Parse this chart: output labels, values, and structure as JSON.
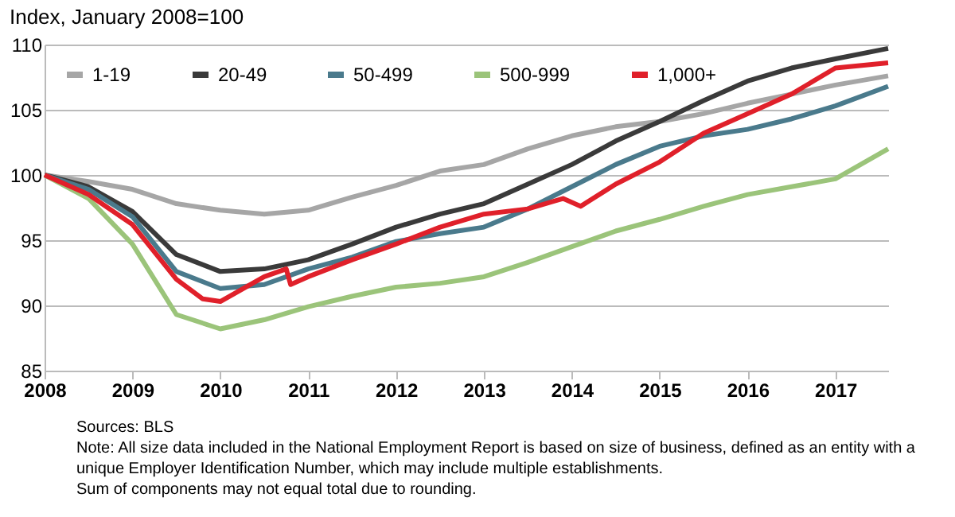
{
  "chart_data": {
    "type": "line",
    "title": "Index, January 2008=100",
    "xlim": [
      2008,
      2017.6
    ],
    "xticks": [
      2008,
      2009,
      2010,
      2011,
      2012,
      2013,
      2014,
      2015,
      2016,
      2017
    ],
    "ylim": [
      85,
      110
    ],
    "yticks": [
      85,
      90,
      95,
      100,
      105,
      110
    ],
    "grid": "y",
    "legend": "top",
    "marker": "none",
    "line_style": "solid",
    "series": [
      {
        "name": "1-19",
        "color": "#a6a6a6",
        "x": [
          2008,
          2008.5,
          2009,
          2009.5,
          2010,
          2010.5,
          2011,
          2011.5,
          2012,
          2012.5,
          2013,
          2013.5,
          2014,
          2014.5,
          2015,
          2015.5,
          2016,
          2016.5,
          2017,
          2017.6
        ],
        "values": [
          100,
          99.5,
          98.9,
          97.8,
          97.3,
          97.0,
          97.3,
          98.3,
          99.2,
          100.3,
          100.8,
          102.0,
          103.0,
          103.7,
          104.1,
          104.7,
          105.5,
          106.2,
          106.9,
          107.6
        ]
      },
      {
        "name": "20-49",
        "color": "#3a3a3a",
        "x": [
          2008,
          2008.5,
          2009,
          2009.5,
          2010,
          2010.5,
          2011,
          2011.5,
          2012,
          2012.5,
          2013,
          2013.5,
          2014,
          2014.5,
          2015,
          2015.5,
          2016,
          2016.5,
          2017,
          2017.6
        ],
        "values": [
          100,
          99.1,
          97.2,
          93.9,
          92.6,
          92.8,
          93.5,
          94.7,
          96.0,
          97.0,
          97.8,
          99.3,
          100.8,
          102.6,
          104.1,
          105.7,
          107.2,
          108.2,
          108.9,
          109.7
        ]
      },
      {
        "name": "50-499",
        "color": "#4a7a8c",
        "x": [
          2008,
          2008.5,
          2009,
          2009.5,
          2010,
          2010.5,
          2011,
          2011.5,
          2012,
          2012.5,
          2013,
          2013.5,
          2014,
          2014.5,
          2015,
          2015.5,
          2016,
          2016.5,
          2017,
          2017.6
        ],
        "values": [
          100,
          98.9,
          96.8,
          92.6,
          91.3,
          91.6,
          92.8,
          93.7,
          94.9,
          95.5,
          96.0,
          97.4,
          99.1,
          100.8,
          102.2,
          103.0,
          103.5,
          104.3,
          105.3,
          106.8
        ]
      },
      {
        "name": "500-999",
        "color": "#9bc47a",
        "x": [
          2008,
          2008.5,
          2009,
          2009.5,
          2010,
          2010.5,
          2011,
          2011.5,
          2012,
          2012.5,
          2013,
          2013.5,
          2014,
          2014.5,
          2015,
          2015.5,
          2016,
          2016.5,
          2017,
          2017.6
        ],
        "values": [
          100,
          98.2,
          94.7,
          89.3,
          88.2,
          88.9,
          89.9,
          90.7,
          91.4,
          91.7,
          92.2,
          93.3,
          94.5,
          95.7,
          96.6,
          97.6,
          98.5,
          99.1,
          99.7,
          102.0
        ]
      },
      {
        "name": "1,000+",
        "color": "#e0202a",
        "x": [
          2008,
          2008.5,
          2009,
          2009.5,
          2009.8,
          2010,
          2010.5,
          2010.75,
          2010.8,
          2011,
          2011.5,
          2012,
          2012.5,
          2013,
          2013.5,
          2013.9,
          2014.1,
          2014.5,
          2015,
          2015.5,
          2016,
          2016.5,
          2017,
          2017.6
        ],
        "values": [
          100,
          98.5,
          96.2,
          92.0,
          90.5,
          90.3,
          92.2,
          92.8,
          91.6,
          92.2,
          93.5,
          94.7,
          96.0,
          97.0,
          97.4,
          98.2,
          97.6,
          99.3,
          101.0,
          103.2,
          104.7,
          106.2,
          108.2,
          108.6
        ]
      }
    ],
    "annotations": [
      "Sources: BLS",
      "Note:  All size data included in the National Employment Report is based on size of business, defined as an entity with a",
      "           unique Employer Identification Number, which may include multiple establishments.",
      "           Sum of components may not equal total due to rounding."
    ]
  }
}
